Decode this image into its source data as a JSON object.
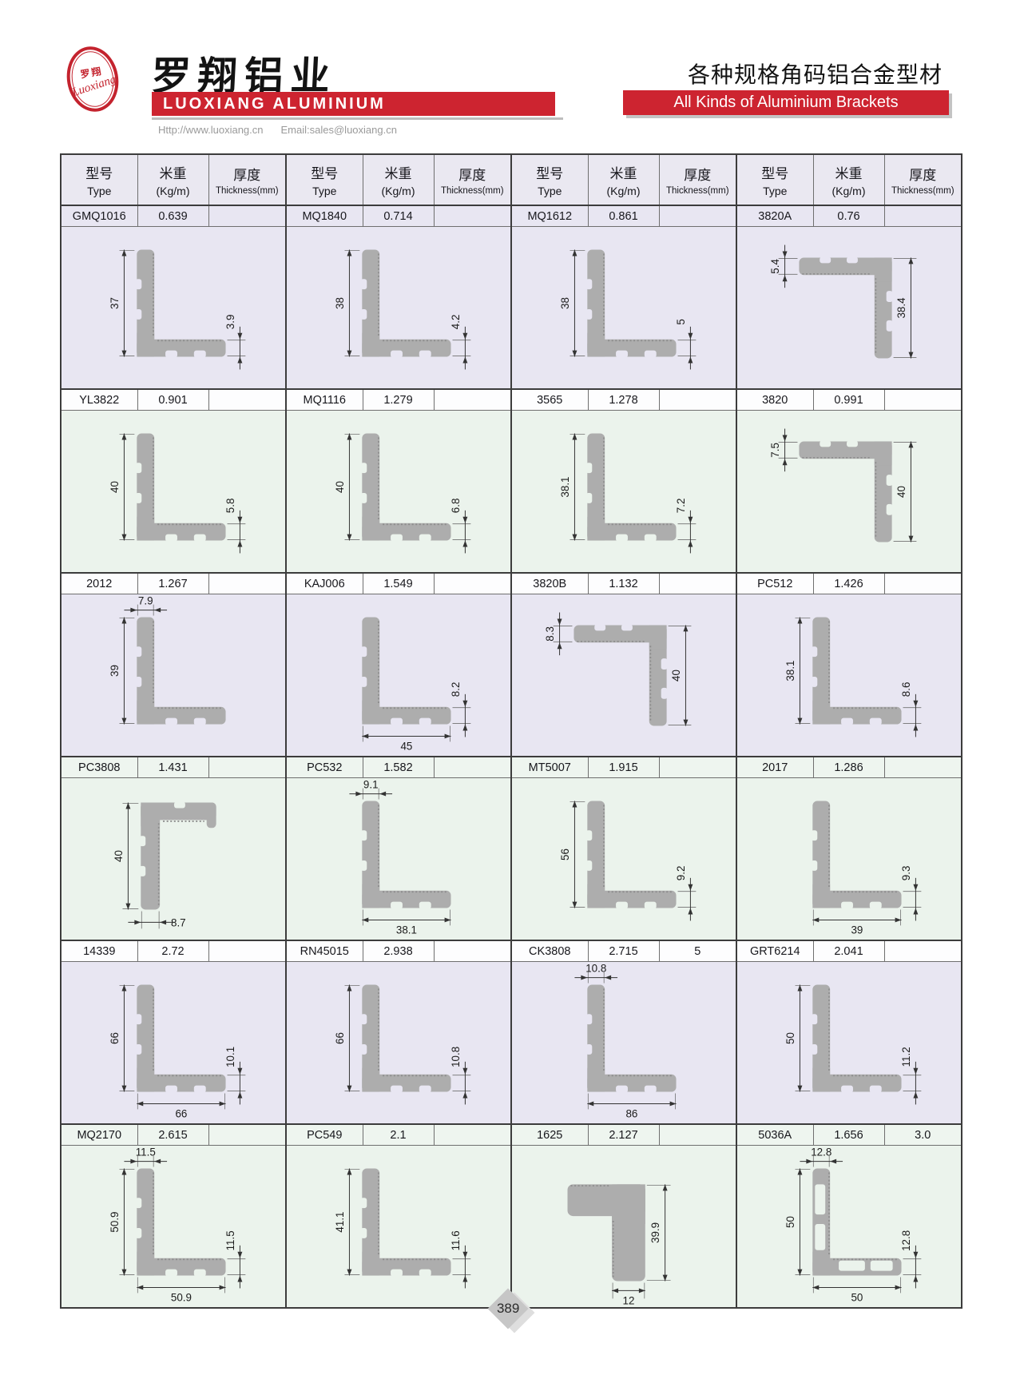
{
  "header": {
    "logo_cn": "罗翔",
    "logo_script": "Luoxiang",
    "title_cn": "罗翔铝业",
    "title_en": "LUOXIANG ALUMINIUM",
    "url": "Http://www.luoxiang.cn",
    "email": "Email:sales@luoxiang.cn",
    "right_cn": "各种规格角码铝合金型材",
    "right_en": "All Kinds of Aluminium Brackets",
    "accent_color": "#cd2430"
  },
  "colors": {
    "lavender": "#e8e6f2",
    "green": "#ebf3ec",
    "row_lavender": "#e8e6f2",
    "row_green": "#eef5ef",
    "row_white": "#fdfdfe",
    "header_bg": "#eae8f1",
    "profile_fill": "#adadad"
  },
  "table": {
    "columns": [
      {
        "cn": "型号",
        "en": "Type"
      },
      {
        "cn": "米重",
        "en": "(Kg/m)"
      },
      {
        "cn": "厚度",
        "en": "Thickness(mm)"
      }
    ],
    "rows": [
      {
        "header_tint": "lavender",
        "diagram_tint": "lavender",
        "cells": [
          {
            "type": "GMQ1016",
            "weight": "0.639",
            "thickness": "",
            "shape": "L",
            "dims": {
              "left": "37",
              "right": "3.9"
            }
          },
          {
            "type": "MQ1840",
            "weight": "0.714",
            "thickness": "",
            "shape": "L",
            "dims": {
              "left": "38",
              "right": "4.2"
            }
          },
          {
            "type": "MQ1612",
            "weight": "0.861",
            "thickness": "",
            "shape": "L",
            "dims": {
              "left": "38",
              "right": "5"
            }
          },
          {
            "type": "3820A",
            "weight": "0.76",
            "thickness": "",
            "shape": "gamma",
            "dims": {
              "left": "5.4",
              "right": "38.4"
            }
          }
        ]
      },
      {
        "header_tint": "white",
        "diagram_tint": "green",
        "cells": [
          {
            "type": "YL3822",
            "weight": "0.901",
            "thickness": "",
            "shape": "L",
            "dims": {
              "left": "40",
              "right": "5.8"
            }
          },
          {
            "type": "MQ1116",
            "weight": "1.279",
            "thickness": "",
            "shape": "L",
            "dims": {
              "left": "40",
              "right": "6.8"
            }
          },
          {
            "type": "3565",
            "weight": "1.278",
            "thickness": "",
            "shape": "L",
            "dims": {
              "left": "38.1",
              "right": "7.2"
            }
          },
          {
            "type": "3820",
            "weight": "0.991",
            "thickness": "",
            "shape": "gamma",
            "dims": {
              "left": "7.5",
              "right": "40"
            }
          }
        ]
      },
      {
        "header_tint": "white",
        "diagram_tint": "lavender",
        "cells": [
          {
            "type": "2012",
            "weight": "1.267",
            "thickness": "",
            "shape": "L",
            "dims": {
              "top": "7.9",
              "left": "39"
            }
          },
          {
            "type": "KAJ006",
            "weight": "1.549",
            "thickness": "",
            "shape": "L",
            "dims": {
              "right": "8.2",
              "bottom": "45"
            }
          },
          {
            "type": "3820B",
            "weight": "1.132",
            "thickness": "",
            "shape": "gamma",
            "dims": {
              "left": "8.3",
              "right": "40"
            }
          },
          {
            "type": "PC512",
            "weight": "1.426",
            "thickness": "",
            "shape": "L",
            "dims": {
              "left": "38.1",
              "right": "8.6"
            }
          }
        ]
      },
      {
        "header_tint": "green",
        "diagram_tint": "green",
        "cells": [
          {
            "type": "PC3808",
            "weight": "1.431",
            "thickness": "",
            "shape": "cornerTop",
            "dims": {
              "left": "40",
              "bottom": "8.7"
            }
          },
          {
            "type": "PC532",
            "weight": "1.582",
            "thickness": "",
            "shape": "L",
            "dims": {
              "top": "9.1",
              "bottom": "38.1"
            }
          },
          {
            "type": "MT5007",
            "weight": "1.915",
            "thickness": "",
            "shape": "L",
            "dims": {
              "left": "56",
              "right": "9.2"
            }
          },
          {
            "type": "2017",
            "weight": "1.286",
            "thickness": "",
            "shape": "L",
            "dims": {
              "right": "9.3",
              "bottom": "39"
            }
          }
        ]
      },
      {
        "header_tint": "white",
        "diagram_tint": "lavender",
        "cells": [
          {
            "type": "14339",
            "weight": "2.72",
            "thickness": "",
            "shape": "L",
            "dims": {
              "left": "66",
              "right": "10.1",
              "bottom": "66"
            }
          },
          {
            "type": "RN45015",
            "weight": "2.938",
            "thickness": "",
            "shape": "L",
            "dims": {
              "left": "66",
              "right": "10.8"
            }
          },
          {
            "type": "CK3808",
            "weight": "2.715",
            "thickness": "5",
            "shape": "L",
            "dims": {
              "top": "10.8",
              "bottom": "86"
            }
          },
          {
            "type": "GRT6214",
            "weight": "2.041",
            "thickness": "",
            "shape": "L",
            "dims": {
              "left": "50",
              "right": "11.2"
            }
          }
        ]
      },
      {
        "header_tint": "green",
        "diagram_tint": "green",
        "cells": [
          {
            "type": "MQ2170",
            "weight": "2.615",
            "thickness": "",
            "shape": "L",
            "dims": {
              "top": "11.5",
              "left": "50.9",
              "right": "11.5",
              "bottom": "50.9"
            }
          },
          {
            "type": "PC549",
            "weight": "2.1",
            "thickness": "",
            "shape": "L",
            "dims": {
              "left": "41.1",
              "right": "11.6"
            }
          },
          {
            "type": "1625",
            "weight": "2.127",
            "thickness": "",
            "shape": "gammaSolid",
            "dims": {
              "right": "39.9",
              "bottom": "12"
            }
          },
          {
            "type": "5036A",
            "weight": "1.656",
            "thickness": "3.0",
            "shape": "L",
            "hollow": true,
            "dims": {
              "top": "12.8",
              "left": "50",
              "right": "12.8",
              "bottom": "50"
            }
          }
        ]
      }
    ]
  },
  "footer": {
    "page_number": "389"
  }
}
